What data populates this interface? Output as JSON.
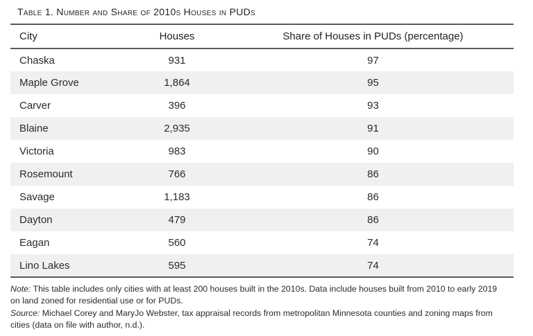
{
  "title": "Table 1. Number and Share of 2010s Houses in PUDs",
  "table": {
    "columns": [
      "City",
      "Houses",
      "Share of Houses in PUDs (percentage)"
    ],
    "rows": [
      [
        "Chaska",
        "931",
        "97"
      ],
      [
        "Maple Grove",
        "1,864",
        "95"
      ],
      [
        "Carver",
        "396",
        "93"
      ],
      [
        "Blaine",
        "2,935",
        "91"
      ],
      [
        "Victoria",
        "983",
        "90"
      ],
      [
        "Rosemount",
        "766",
        "86"
      ],
      [
        "Savage",
        "1,183",
        "86"
      ],
      [
        "Dayton",
        "479",
        "86"
      ],
      [
        "Eagan",
        "560",
        "74"
      ],
      [
        "Lino Lakes",
        "595",
        "74"
      ]
    ]
  },
  "notes": {
    "note_label": "Note:",
    "note_text": " This table includes only cities with at least 200 houses built in the 2010s. Data include houses built from 2010 to early 2019 on land zoned for residential use or for PUDs.",
    "source_label": "Source:",
    "source_text": " Michael Corey and MaryJo Webster, tax appraisal records from metropolitan Minnesota counties and zoning maps from cities (data on file with author, n.d.)."
  },
  "colors": {
    "rule": "#58595b",
    "row_shade": "#f0f0f1",
    "text": "#231f20"
  }
}
